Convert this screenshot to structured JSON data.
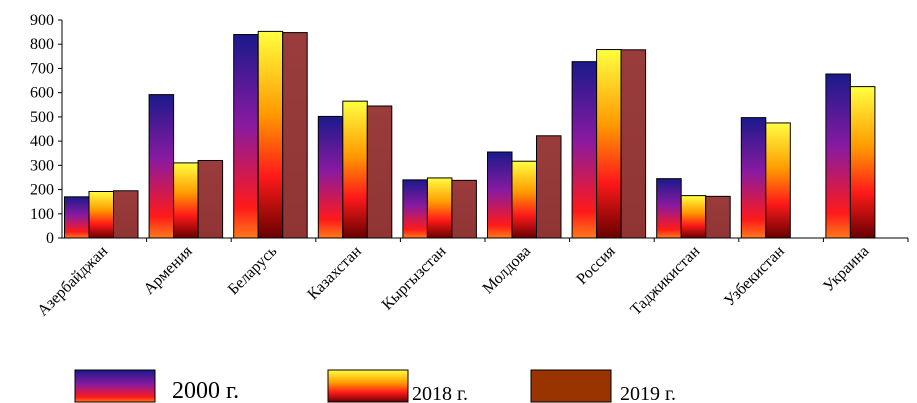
{
  "chart_data": {
    "type": "bar",
    "categories": [
      "Азербайджан",
      "Армения",
      "Беларусь",
      "Казахстан",
      "Кыргызстан",
      "Молдова",
      "Россия",
      "Таджикистан",
      "Узбекистан",
      "Украина"
    ],
    "series": [
      {
        "name": "2000 г.",
        "values": [
          170,
          592,
          840,
          502,
          240,
          355,
          728,
          245,
          497,
          677
        ]
      },
      {
        "name": "2018 г.",
        "values": [
          192,
          310,
          853,
          565,
          248,
          317,
          778,
          175,
          475,
          625
        ]
      },
      {
        "name": "2019 г.",
        "values": [
          195,
          320,
          848,
          545,
          238,
          422,
          777,
          172,
          null,
          null
        ]
      }
    ],
    "y_ticks": [
      "0",
      "100",
      "200",
      "300",
      "400",
      "500",
      "600",
      "700",
      "800",
      "900"
    ],
    "ylim": [
      0,
      900
    ],
    "legend_position": "bottom",
    "colors": {
      "s2000_top": "#1a1a8c",
      "s2000_mid": "#8a1aa0",
      "s2000_bot": "#ff1a1a",
      "s2018_top": "#ffff40",
      "s2018_mid": "#ff8c00",
      "s2018_bot": "#7a0000",
      "s2019": "#953838",
      "legend2019": "#993300"
    }
  }
}
